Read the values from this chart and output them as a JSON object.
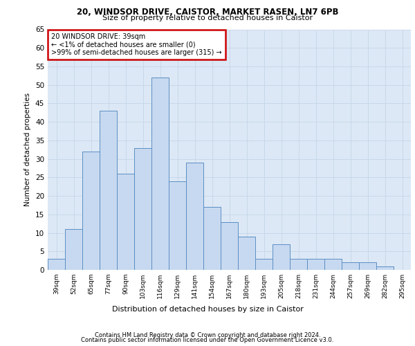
{
  "title1": "20, WINDSOR DRIVE, CAISTOR, MARKET RASEN, LN7 6PB",
  "title2": "Size of property relative to detached houses in Caistor",
  "xlabel": "Distribution of detached houses by size in Caistor",
  "ylabel": "Number of detached properties",
  "categories": [
    "39sqm",
    "52sqm",
    "65sqm",
    "77sqm",
    "90sqm",
    "103sqm",
    "116sqm",
    "129sqm",
    "141sqm",
    "154sqm",
    "167sqm",
    "180sqm",
    "193sqm",
    "205sqm",
    "218sqm",
    "231sqm",
    "244sqm",
    "257sqm",
    "269sqm",
    "282sqm",
    "295sqm"
  ],
  "values": [
    3,
    11,
    32,
    43,
    26,
    33,
    52,
    24,
    29,
    17,
    13,
    9,
    3,
    7,
    3,
    3,
    3,
    2,
    2,
    1,
    0
  ],
  "bar_color": "#c7d9f0",
  "bar_edge_color": "#5b8ec4",
  "annotation_box_text": "20 WINDSOR DRIVE: 39sqm\n← <1% of detached houses are smaller (0)\n>99% of semi-detached houses are larger (315) →",
  "annotation_box_color": "#ffffff",
  "annotation_box_edge_color": "#cc0000",
  "ylim": [
    0,
    65
  ],
  "yticks": [
    0,
    5,
    10,
    15,
    20,
    25,
    30,
    35,
    40,
    45,
    50,
    55,
    60,
    65
  ],
  "grid_color": "#c8d8ea",
  "background_color": "#dce8f5",
  "footer1": "Contains HM Land Registry data © Crown copyright and database right 2024.",
  "footer2": "Contains public sector information licensed under the Open Government Licence v3.0."
}
